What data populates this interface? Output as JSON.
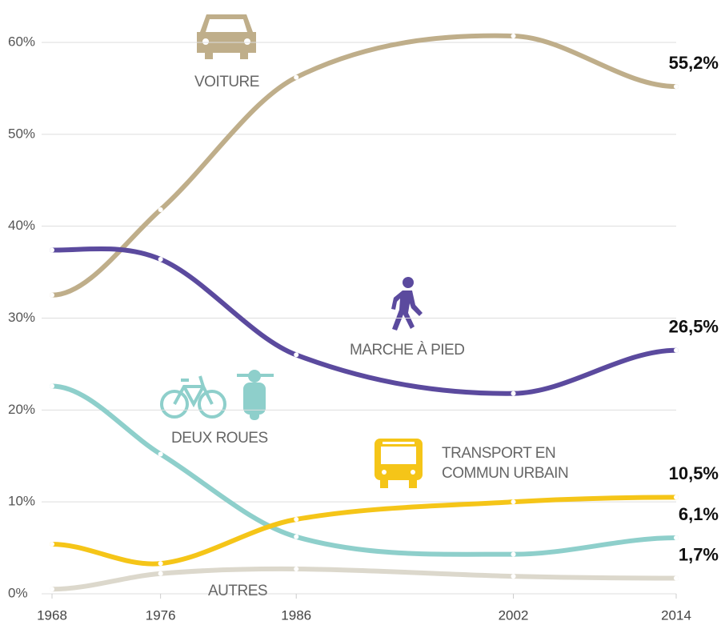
{
  "chart_data": {
    "type": "line",
    "x": [
      1968,
      1976,
      1986,
      2002,
      2014
    ],
    "xlim": [
      1968,
      2014
    ],
    "xticks": [
      1968,
      1976,
      1986,
      2002,
      2014
    ],
    "ylim": [
      0,
      60
    ],
    "yticks": [
      {
        "value": 0,
        "label": "0%"
      },
      {
        "value": 10,
        "label": "10%"
      },
      {
        "value": 20,
        "label": "20%"
      },
      {
        "value": 30,
        "label": "30%"
      },
      {
        "value": 40,
        "label": "40%"
      },
      {
        "value": 50,
        "label": "50%"
      },
      {
        "value": 60,
        "label": "60%"
      }
    ],
    "grid": true,
    "series": [
      {
        "name": "VOITURE",
        "color": "#bfae8a",
        "values": [
          32.5,
          41.8,
          56.2,
          60.7,
          55.2
        ],
        "value_labels": [
          null,
          null,
          null,
          null,
          "55,2%"
        ]
      },
      {
        "name": "MARCHE À PIED",
        "color": "#5b4a9e",
        "values": [
          37.4,
          36.4,
          26.0,
          21.8,
          26.5
        ],
        "value_labels": [
          null,
          null,
          null,
          null,
          "26,5%"
        ]
      },
      {
        "name": "DEUX ROUES",
        "color": "#8ecfcb",
        "values": [
          22.6,
          15.2,
          6.2,
          4.3,
          6.1
        ],
        "value_labels": [
          null,
          null,
          null,
          null,
          "6,1%"
        ]
      },
      {
        "name": "TRANSPORT EN COMMUN URBAIN",
        "color": "#f5c518",
        "values": [
          5.4,
          3.3,
          8.1,
          10.0,
          10.5
        ],
        "value_labels": [
          null,
          null,
          null,
          null,
          "10,5%"
        ]
      },
      {
        "name": "AUTRES",
        "color": "#dcd8cc",
        "values": [
          0.5,
          2.2,
          2.7,
          1.9,
          1.7
        ],
        "value_labels": [
          null,
          null,
          null,
          null,
          "1,7%"
        ]
      }
    ]
  }
}
